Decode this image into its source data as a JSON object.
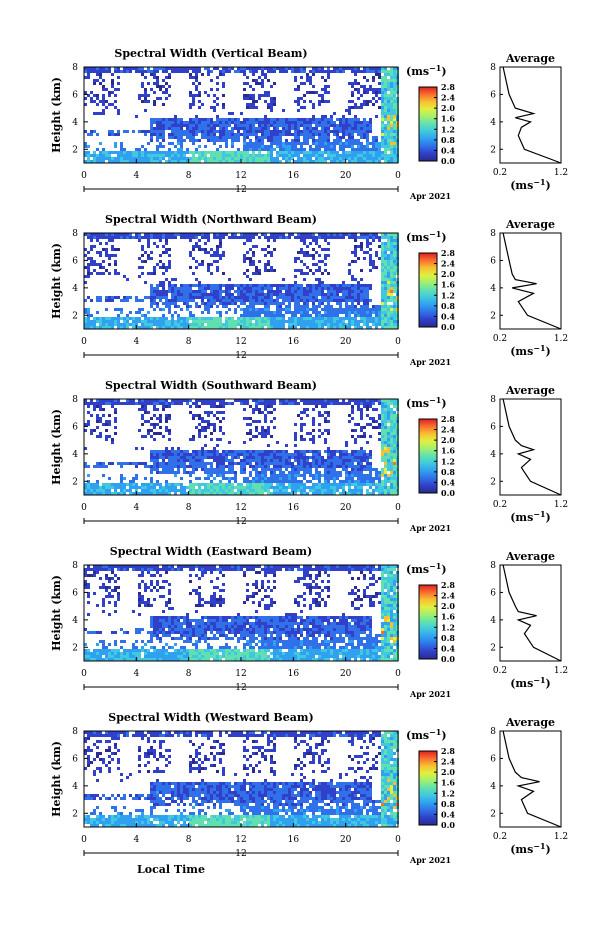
{
  "figure": {
    "x_axis_label": "Local Time",
    "date_label": "Apr 2021",
    "day_label": "12",
    "height_label": "Height (km)",
    "unit_label": "(ms",
    "unit_sup": "−1",
    "avg_title": "Average",
    "avg_xlabel": "(ms",
    "colormap": [
      "#2b2b8f",
      "#3040c8",
      "#3070e8",
      "#30a0f0",
      "#40c8e0",
      "#60e0b0",
      "#a0f070",
      "#e0f040",
      "#f8c030",
      "#f87030",
      "#e02020"
    ],
    "time_ticks": [
      "0",
      "4",
      "8",
      "12",
      "16",
      "20",
      "0"
    ],
    "height_ticks": [
      "2",
      "4",
      "6",
      "8"
    ],
    "colorbar_ticks": [
      "0.0",
      "0.4",
      "0.8",
      "1.2",
      "1.6",
      "2.0",
      "2.4",
      "2.8"
    ]
  },
  "chart_data": [
    {
      "type": "heatmap",
      "title": "Spectral Width (Vertical Beam)",
      "xlabel": "",
      "ylabel": "Height (km)",
      "xlim": [
        0,
        24
      ],
      "ylim": [
        1,
        8
      ],
      "clim": [
        0,
        2.8
      ],
      "average_profile": {
        "title": "Average",
        "xlim": [
          0.2,
          1.2
        ],
        "height": [
          1.0,
          2.0,
          3.0,
          3.6,
          4.0,
          4.3,
          4.6,
          5.0,
          6.0,
          7.0,
          8.0
        ],
        "width": [
          1.2,
          0.6,
          0.5,
          0.55,
          0.7,
          0.45,
          0.75,
          0.45,
          0.35,
          0.3,
          0.25
        ]
      }
    },
    {
      "type": "heatmap",
      "title": "Spectral Width (Northward Beam)",
      "xlabel": "",
      "ylabel": "Height (km)",
      "xlim": [
        0,
        24
      ],
      "ylim": [
        1,
        8
      ],
      "clim": [
        0,
        2.8
      ],
      "average_profile": {
        "title": "Average",
        "xlim": [
          0.2,
          1.2
        ],
        "height": [
          1.0,
          2.0,
          3.0,
          3.6,
          4.0,
          4.3,
          4.6,
          5.0,
          6.0,
          7.0,
          8.0
        ],
        "width": [
          1.2,
          0.65,
          0.5,
          0.75,
          0.4,
          0.8,
          0.45,
          0.4,
          0.35,
          0.3,
          0.25
        ]
      }
    },
    {
      "type": "heatmap",
      "title": "Spectral Width (Southward Beam)",
      "xlabel": "",
      "ylabel": "Height (km)",
      "xlim": [
        0,
        24
      ],
      "ylim": [
        1,
        8
      ],
      "clim": [
        0,
        2.8
      ],
      "average_profile": {
        "title": "Average",
        "xlim": [
          0.2,
          1.2
        ],
        "height": [
          1.0,
          2.0,
          3.0,
          3.6,
          4.0,
          4.3,
          4.6,
          5.0,
          6.0,
          7.0,
          8.0
        ],
        "width": [
          1.2,
          0.7,
          0.55,
          0.7,
          0.5,
          0.75,
          0.55,
          0.45,
          0.35,
          0.3,
          0.25
        ]
      }
    },
    {
      "type": "heatmap",
      "title": "Spectral Width (Eastward Beam)",
      "xlabel": "",
      "ylabel": "Height (km)",
      "xlim": [
        0,
        24
      ],
      "ylim": [
        1,
        8
      ],
      "clim": [
        0,
        2.8
      ],
      "average_profile": {
        "title": "Average",
        "xlim": [
          0.2,
          1.2
        ],
        "height": [
          1.0,
          2.0,
          3.0,
          3.6,
          4.0,
          4.3,
          4.6,
          5.0,
          6.0,
          7.0,
          8.0
        ],
        "width": [
          1.2,
          0.75,
          0.6,
          0.7,
          0.5,
          0.8,
          0.5,
          0.45,
          0.35,
          0.3,
          0.25
        ]
      }
    },
    {
      "type": "heatmap",
      "title": "Spectral Width (Westward Beam)",
      "xlabel": "Local Time",
      "ylabel": "Height (km)",
      "xlim": [
        0,
        24
      ],
      "ylim": [
        1,
        8
      ],
      "clim": [
        0,
        2.8
      ],
      "average_profile": {
        "title": "Average",
        "xlim": [
          0.2,
          1.2
        ],
        "height": [
          1.0,
          2.0,
          3.0,
          3.6,
          4.0,
          4.3,
          4.6,
          5.0,
          6.0,
          7.0,
          8.0
        ],
        "width": [
          1.2,
          0.65,
          0.55,
          0.75,
          0.5,
          0.85,
          0.55,
          0.45,
          0.35,
          0.3,
          0.25
        ]
      }
    }
  ]
}
